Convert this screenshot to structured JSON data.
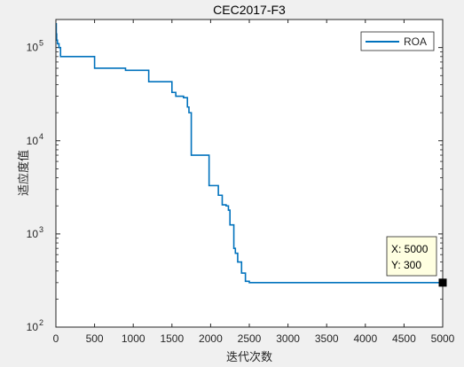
{
  "chart_data": {
    "type": "line",
    "title": "CEC2017-F3",
    "xlabel": "迭代次数",
    "ylabel": "适应度值",
    "xlim": [
      0,
      5000
    ],
    "ylim": [
      100,
      200000
    ],
    "yscale": "log",
    "grid": false,
    "legend_position": "top-right",
    "x_ticks": [
      "0",
      "500",
      "1000",
      "1500",
      "2000",
      "2500",
      "3000",
      "3500",
      "4000",
      "4500",
      "5000"
    ],
    "y_ticks": [
      {
        "base": "10",
        "exp": "2",
        "value": 100
      },
      {
        "base": "10",
        "exp": "3",
        "value": 1000
      },
      {
        "base": "10",
        "exp": "4",
        "value": 10000
      },
      {
        "base": "10",
        "exp": "5",
        "value": 100000
      }
    ],
    "series": [
      {
        "name": "ROA",
        "color": "#0072bd",
        "x": [
          0,
          5,
          10,
          20,
          40,
          60,
          500,
          900,
          1200,
          1500,
          1550,
          1650,
          1700,
          1720,
          1750,
          1800,
          1980,
          2000,
          2100,
          2150,
          2200,
          2230,
          2250,
          2280,
          2300,
          2320,
          2350,
          2400,
          2450,
          2500,
          2600,
          5000
        ],
        "y": [
          180000,
          140000,
          120000,
          110000,
          100000,
          80000,
          60000,
          57000,
          43000,
          33000,
          30000,
          29000,
          23000,
          20000,
          7000,
          7000,
          3300,
          3300,
          2600,
          2050,
          2000,
          1800,
          1250,
          1250,
          700,
          620,
          500,
          380,
          310,
          300,
          300,
          300
        ]
      }
    ],
    "datatip": {
      "x_label": "X: 5000",
      "y_label": "Y: 300",
      "x": 5000,
      "y": 300
    }
  }
}
